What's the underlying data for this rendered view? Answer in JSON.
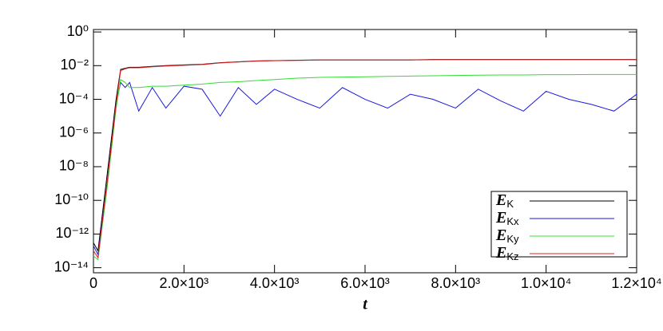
{
  "chart_data": {
    "type": "line",
    "xlabel": "t",
    "yscale": "log",
    "legend": "lower right",
    "xlim": [
      0,
      12000
    ],
    "ylim": [
      5e-15,
      1.4
    ],
    "xticks": [
      0,
      {
        "value": 2000,
        "label": "2.0×10³"
      },
      {
        "value": 4000,
        "label": "4.0×10³"
      },
      {
        "value": 6000,
        "label": "6.0×10³"
      },
      {
        "value": 8000,
        "label": "8.0×10³"
      },
      {
        "value": 10000,
        "label": "1.0×10⁴"
      },
      {
        "value": 12000,
        "label": "1.2×10⁴"
      }
    ],
    "yticks": [
      {
        "value": 1,
        "label": "10⁰"
      },
      {
        "value": 0.01,
        "label": "10⁻²"
      },
      {
        "value": 0.0001,
        "label": "10⁻⁴"
      },
      {
        "value": 1e-06,
        "label": "10⁻⁶"
      },
      {
        "value": 1e-08,
        "label": "10⁻⁸"
      },
      {
        "value": 1e-10,
        "label": "10⁻¹⁰"
      },
      {
        "value": 1e-12,
        "label": "10⁻¹²"
      },
      {
        "value": 1e-14,
        "label": "10⁻¹⁴"
      }
    ],
    "x": [
      0,
      100,
      300,
      500,
      600,
      700,
      800,
      1000,
      1300,
      1600,
      2000,
      2400,
      2800,
      3200,
      3600,
      4000,
      4500,
      5000,
      5500,
      6000,
      6500,
      7000,
      7500,
      8000,
      8500,
      9000,
      9500,
      10000,
      10500,
      11000,
      11500,
      12000
    ],
    "series": [
      {
        "name": "EK",
        "color": "#000000",
        "values": [
          3e-13,
          1e-13,
          3e-09,
          0.0001,
          0.006,
          0.007,
          0.008,
          0.008,
          0.009,
          0.01,
          0.011,
          0.012,
          0.015,
          0.017,
          0.019,
          0.02,
          0.021,
          0.022,
          0.022,
          0.022,
          0.022,
          0.022,
          0.023,
          0.023,
          0.023,
          0.023,
          0.023,
          0.023,
          0.023,
          0.023,
          0.023,
          0.023
        ]
      },
      {
        "name": "EKx",
        "color": "#1a1adc",
        "values": [
          2e-13,
          6e-14,
          1e-09,
          5e-05,
          0.001,
          0.0005,
          0.001,
          2e-05,
          0.0005,
          3e-05,
          0.0006,
          0.0004,
          1e-05,
          0.0005,
          5e-05,
          0.0004,
          0.0001,
          3e-05,
          0.0005,
          0.0001,
          3e-05,
          0.0002,
          0.0001,
          3e-05,
          0.0004,
          8e-05,
          2e-05,
          0.0003,
          0.0001,
          5e-05,
          2e-05,
          0.0002
        ]
      },
      {
        "name": "EKy",
        "color": "#33dd33",
        "values": [
          5e-14,
          3e-14,
          5e-10,
          3e-05,
          0.0015,
          0.001,
          0.0005,
          0.0005,
          0.0006,
          0.0006,
          0.0007,
          0.0008,
          0.001,
          0.0011,
          0.0013,
          0.0015,
          0.0018,
          0.002,
          0.0021,
          0.0022,
          0.0023,
          0.0024,
          0.0025,
          0.0026,
          0.0027,
          0.0028,
          0.0028,
          0.0029,
          0.0029,
          0.003,
          0.003,
          0.003
        ]
      },
      {
        "name": "EKz",
        "color": "#e02020",
        "values": [
          1e-13,
          4e-14,
          1e-09,
          5e-05,
          0.005,
          0.0065,
          0.0075,
          0.0075,
          0.0085,
          0.0095,
          0.0105,
          0.0115,
          0.0145,
          0.0165,
          0.0185,
          0.0195,
          0.0205,
          0.0215,
          0.0215,
          0.0215,
          0.0215,
          0.0215,
          0.0225,
          0.0225,
          0.0225,
          0.0225,
          0.0225,
          0.0225,
          0.0225,
          0.0225,
          0.0225,
          0.0225
        ]
      }
    ]
  }
}
